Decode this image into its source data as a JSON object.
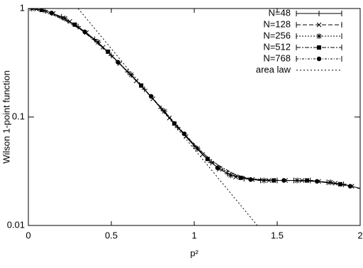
{
  "chart_data": {
    "type": "line",
    "x_label": "p²",
    "y_label": "Wilson 1-point function",
    "xlim": [
      0,
      2
    ],
    "xticks": [
      0,
      0.5,
      1,
      1.5,
      2
    ],
    "ylim": [
      0.01,
      1
    ],
    "yticks": [
      0.01,
      0.1,
      1
    ],
    "log_y": true,
    "legend": "top-right",
    "series": [
      {
        "name": "N=48",
        "color": "#000000",
        "marker": "plus",
        "dash": "none",
        "x": [
          0,
          0.1,
          0.2,
          0.3,
          0.4,
          0.5,
          0.6,
          0.7,
          0.8,
          0.9,
          1.0,
          1.1,
          1.2,
          1.3,
          1.4,
          1.5,
          1.6,
          1.7,
          1.8,
          1.9,
          2.0
        ],
        "values": [
          1,
          0.96,
          0.84,
          0.68,
          0.52,
          0.37,
          0.26,
          0.18,
          0.12,
          0.08,
          0.054,
          0.038,
          0.03,
          0.027,
          0.026,
          0.026,
          0.026,
          0.026,
          0.025,
          0.024,
          0.022
        ]
      },
      {
        "name": "N=128",
        "color": "#000000",
        "marker": "cross",
        "dash": "6 3",
        "x": [
          0.05,
          0.15,
          0.25,
          0.35,
          0.45,
          0.55,
          0.65,
          0.75,
          0.85,
          0.95,
          1.05,
          1.15,
          1.25,
          1.35,
          1.45,
          1.55,
          1.65,
          1.75,
          1.85,
          1.95
        ],
        "values": [
          0.99,
          0.9,
          0.76,
          0.6,
          0.44,
          0.31,
          0.215,
          0.147,
          0.098,
          0.066,
          0.045,
          0.033,
          0.028,
          0.0265,
          0.026,
          0.026,
          0.026,
          0.0255,
          0.0245,
          0.023
        ]
      },
      {
        "name": "N=256",
        "color": "#000000",
        "marker": "star",
        "dash": "2 2",
        "x": [
          0.02,
          0.22,
          0.42,
          0.62,
          0.82,
          1.02,
          1.22,
          1.42,
          1.62,
          1.82
        ],
        "values": [
          0.998,
          0.81,
          0.49,
          0.245,
          0.113,
          0.051,
          0.029,
          0.026,
          0.026,
          0.025
        ]
      },
      {
        "name": "N=512",
        "color": "#000000",
        "marker": "square",
        "dash": "6 2 2 2",
        "x": [
          0.08,
          0.28,
          0.48,
          0.68,
          0.88,
          1.08,
          1.28,
          1.48,
          1.68,
          1.88
        ],
        "values": [
          0.97,
          0.71,
          0.4,
          0.195,
          0.087,
          0.041,
          0.0275,
          0.026,
          0.026,
          0.024
        ]
      },
      {
        "name": "N=768",
        "color": "#000000",
        "marker": "circle",
        "dash": "3 2 1 2",
        "x": [
          0.14,
          0.34,
          0.54,
          0.74,
          0.94,
          1.14,
          1.34,
          1.54,
          1.74,
          1.94
        ],
        "values": [
          0.91,
          0.61,
          0.32,
          0.155,
          0.07,
          0.034,
          0.0265,
          0.026,
          0.0255,
          0.023
        ]
      },
      {
        "name": "area law",
        "color": "#000000",
        "marker": "none",
        "dash": "2 3",
        "x": [
          0.3,
          1.38
        ],
        "values": [
          1,
          0.01
        ]
      }
    ]
  }
}
